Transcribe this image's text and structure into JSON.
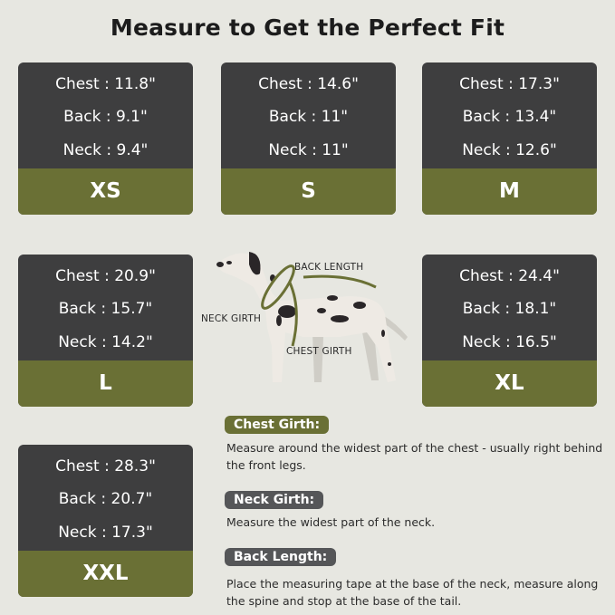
{
  "title": "Measure to Get the Perfect Fit",
  "colors": {
    "background": "#e7e7e1",
    "card": "#3e3e3f",
    "accent": "#6a7035"
  },
  "sizes": [
    {
      "size": "XS",
      "chest": "Chest : 11.8\"",
      "back": "Back : 9.1\"",
      "neck": "Neck : 9.4\""
    },
    {
      "size": "S",
      "chest": "Chest : 14.6\"",
      "back": "Back : 11\"",
      "neck": "Neck : 11\""
    },
    {
      "size": "M",
      "chest": "Chest : 17.3\"",
      "back": "Back : 13.4\"",
      "neck": "Neck : 12.6\""
    },
    {
      "size": "L",
      "chest": "Chest : 20.9\"",
      "back": "Back : 15.7\"",
      "neck": "Neck : 14.2\""
    },
    {
      "size": "XL",
      "chest": "Chest : 24.4\"",
      "back": "Back : 18.1\"",
      "neck": "Neck : 16.5\""
    },
    {
      "size": "XXL",
      "chest": "Chest : 28.3\"",
      "back": "Back : 20.7\"",
      "neck": "Neck : 17.3\""
    }
  ],
  "diagram": {
    "back_length": "BACK LENGTH",
    "neck_girth": "NECK GIRTH",
    "chest_girth": "CHEST GIRTH"
  },
  "instructions": [
    {
      "label": "Chest Girth:",
      "text": "Measure around the widest part of the chest - usually right behind the front legs."
    },
    {
      "label": "Neck Girth:",
      "text": "Measure the widest part of the neck."
    },
    {
      "label": "Back Length:",
      "text": "Place the measuring tape at the base of the neck, measure along the spine and stop at the base of the tail."
    }
  ]
}
